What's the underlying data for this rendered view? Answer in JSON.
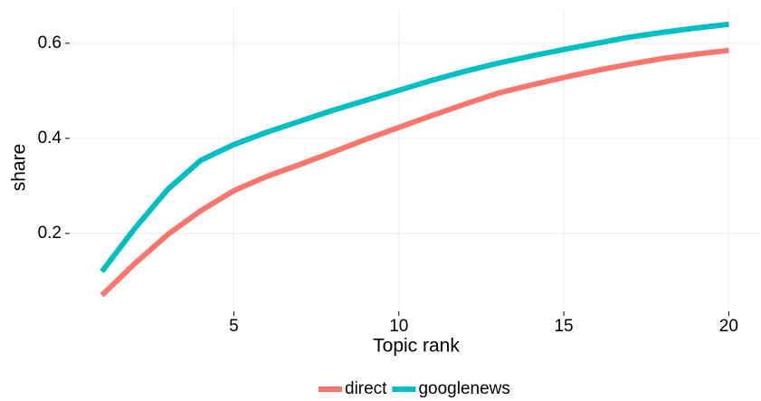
{
  "chart_data": {
    "type": "line",
    "x_label": "Topic rank",
    "y_label": "share",
    "x": [
      1,
      2,
      3,
      4,
      5,
      6,
      7,
      8,
      9,
      10,
      11,
      12,
      13,
      14,
      15,
      16,
      17,
      18,
      19,
      20
    ],
    "series": [
      {
        "name": "direct",
        "color": "#F8766D",
        "values": [
          0.07,
          0.137,
          0.198,
          0.248,
          0.29,
          0.32,
          0.345,
          0.371,
          0.398,
          0.423,
          0.448,
          0.472,
          0.495,
          0.512,
          0.528,
          0.543,
          0.556,
          0.568,
          0.577,
          0.585
        ]
      },
      {
        "name": "googlenews",
        "color": "#00BFC4",
        "values": [
          0.12,
          0.211,
          0.293,
          0.354,
          0.387,
          0.413,
          0.436,
          0.459,
          0.48,
          0.501,
          0.522,
          0.541,
          0.558,
          0.573,
          0.587,
          0.6,
          0.613,
          0.623,
          0.632,
          0.64
        ]
      }
    ],
    "xlim": [
      0.05,
      20.95
    ],
    "ylim": [
      0.038,
      0.672
    ],
    "xticks": [
      5,
      10,
      15,
      20
    ],
    "yticks": [
      0.2,
      0.4,
      0.6
    ],
    "grid": true,
    "legend_position": "bottom"
  }
}
